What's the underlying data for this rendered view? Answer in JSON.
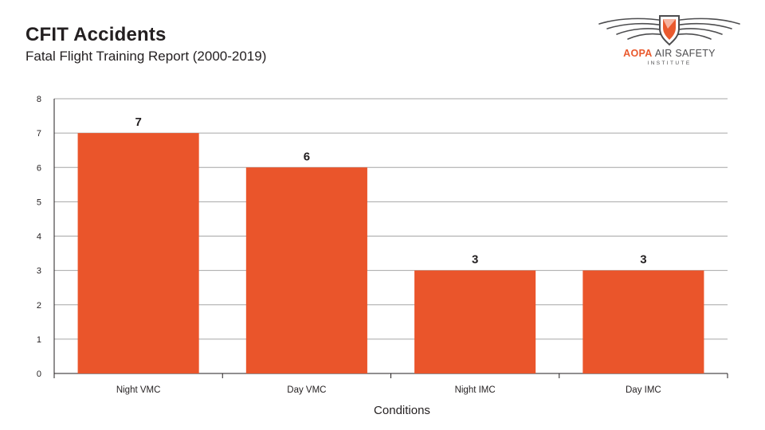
{
  "header": {
    "title": "CFIT Accidents",
    "subtitle": "Fatal Flight Training Report (2000-2019)"
  },
  "logo": {
    "brand_aopa": "AOPA",
    "brand_rest": "AIR SAFETY",
    "institute": "INSTITUTE",
    "icon": "winged-shield-icon"
  },
  "colors": {
    "bar": "#ea552b",
    "grid": "#a6a6a6",
    "text": "#231f20"
  },
  "chart_data": {
    "type": "bar",
    "title": "CFIT Accidents",
    "subtitle": "Fatal Flight Training Report (2000-2019)",
    "xlabel": "Conditions",
    "ylabel": "",
    "categories": [
      "Night VMC",
      "Day VMC",
      "Night IMC",
      "Day IMC"
    ],
    "values": [
      7,
      6,
      3,
      3
    ],
    "data_labels": [
      "7",
      "6",
      "3",
      "3"
    ],
    "ylim": [
      0,
      8
    ],
    "yticks": [
      0,
      1,
      2,
      3,
      4,
      5,
      6,
      7,
      8
    ],
    "grid": true,
    "legend": "none"
  }
}
